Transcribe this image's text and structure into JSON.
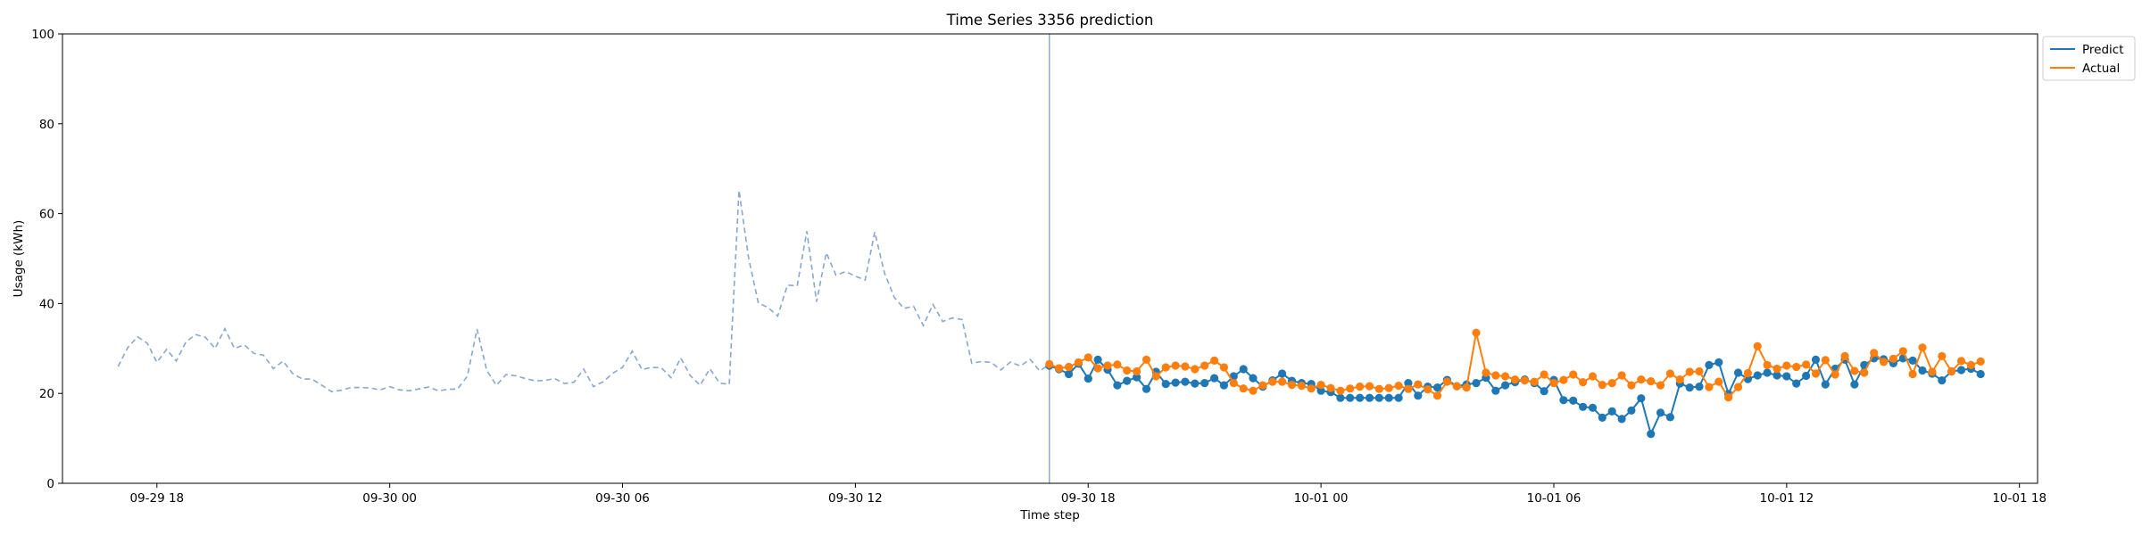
{
  "chart_data": {
    "type": "line",
    "title": "Time Series 3356 prediction",
    "xlabel": "Time step",
    "ylabel": "Usage (kWh)",
    "ylim": [
      0,
      100
    ],
    "yticks": [
      0,
      20,
      40,
      60,
      80,
      100
    ],
    "xlim": [
      "2024-09-29T15:34",
      "2024-10-01T18:28"
    ],
    "xticks": [
      {
        "t": "2024-09-29T18:00",
        "label": "09-29 18"
      },
      {
        "t": "2024-09-30T00:00",
        "label": "09-30 00"
      },
      {
        "t": "2024-09-30T06:00",
        "label": "09-30 06"
      },
      {
        "t": "2024-09-30T12:00",
        "label": "09-30 12"
      },
      {
        "t": "2024-09-30T18:00",
        "label": "09-30 18"
      },
      {
        "t": "2024-10-01T00:00",
        "label": "10-01 00"
      },
      {
        "t": "2024-10-01T06:00",
        "label": "10-01 06"
      },
      {
        "t": "2024-10-01T12:00",
        "label": "10-01 12"
      },
      {
        "t": "2024-10-01T18:00",
        "label": "10-01 18"
      }
    ],
    "vline_time": "2024-09-30T17:00",
    "start_time": "2024-09-29T17:00",
    "history": {
      "style": "dashed",
      "color": "#8aa6cc",
      "values": [
        26.0,
        30.2,
        32.6,
        31.2,
        26.9,
        29.8,
        27.2,
        31.5,
        33.1,
        32.5,
        30.0,
        34.4,
        30.0,
        30.8,
        28.9,
        28.5,
        25.5,
        27.2,
        24.4,
        23.2,
        23.2,
        21.8,
        20.4,
        20.7,
        21.3,
        21.3,
        21.2,
        20.8,
        21.5,
        20.8,
        20.6,
        21.0,
        21.4,
        20.6,
        20.9,
        21.0,
        23.8,
        34.3,
        25.1,
        21.8,
        24.2,
        23.9,
        23.3,
        22.8,
        22.9,
        23.3,
        22.2,
        22.5,
        25.4,
        21.5,
        22.6,
        24.5,
        25.8,
        29.4,
        25.3,
        25.8,
        25.7,
        23.5,
        27.9,
        23.9,
        21.8,
        25.5,
        22.3,
        22.0,
        65.2,
        50.1,
        40.1,
        39.1,
        37.2,
        44.1,
        43.9,
        56.1,
        40.4,
        51.3,
        46.3,
        47.1,
        46.1,
        45.2,
        55.9,
        46.8,
        41.4,
        38.9,
        39.4,
        35.1,
        39.8,
        36.0,
        36.8,
        36.4,
        26.7,
        27.1,
        26.9,
        25.2,
        27.0,
        26.1,
        27.6,
        25.0,
        26.4
      ]
    },
    "series": [
      {
        "name": "Predict",
        "color": "#1f77b4",
        "values": [
          26.2,
          25.4,
          24.3,
          26.6,
          23.3,
          27.5,
          25.3,
          21.8,
          22.8,
          23.6,
          21.0,
          24.8,
          22.1,
          22.4,
          22.6,
          22.2,
          22.3,
          23.4,
          21.8,
          23.8,
          25.4,
          23.4,
          21.5,
          22.9,
          24.4,
          22.8,
          22.3,
          22.1,
          20.6,
          20.3,
          19.0,
          19.0,
          19.0,
          19.0,
          19.0,
          19.0,
          19.0,
          22.3,
          19.5,
          21.5,
          21.3,
          23.0,
          21.6,
          22.0,
          22.3,
          23.5,
          20.6,
          21.8,
          22.5,
          23.1,
          22.3,
          20.5,
          23.0,
          18.5,
          18.4,
          17.0,
          16.8,
          14.6,
          16.0,
          14.3,
          16.2,
          18.9,
          11.0,
          15.7,
          14.7,
          22.2,
          21.3,
          21.5,
          26.3,
          26.9,
          19.9,
          24.6,
          23.2,
          24.0,
          24.6,
          24.0,
          23.8,
          22.2,
          23.9,
          27.5,
          22.0,
          25.5,
          27.5,
          22.0,
          26.3,
          27.8,
          27.6,
          26.7,
          27.8,
          27.3,
          25.1,
          24.4,
          22.9,
          24.9,
          25.2,
          25.5,
          24.3
        ]
      },
      {
        "name": "Actual",
        "color": "#ff7f0e",
        "values": [
          26.5,
          25.6,
          25.9,
          26.9,
          28.0,
          25.6,
          26.2,
          26.4,
          25.1,
          24.9,
          27.5,
          23.8,
          25.8,
          26.2,
          26.0,
          25.4,
          26.2,
          27.3,
          25.8,
          22.3,
          21.1,
          20.6,
          21.8,
          22.6,
          22.6,
          21.9,
          21.7,
          21.1,
          21.9,
          21.2,
          20.6,
          21.1,
          21.5,
          21.6,
          21.0,
          21.2,
          21.7,
          21.0,
          22.0,
          20.9,
          19.5,
          22.6,
          21.6,
          21.3,
          33.5,
          24.6,
          24.0,
          23.8,
          23.1,
          22.9,
          22.6,
          24.2,
          22.3,
          23.0,
          24.2,
          22.5,
          23.8,
          21.9,
          22.3,
          24.0,
          21.8,
          23.1,
          22.7,
          21.8,
          24.4,
          23.1,
          24.8,
          24.9,
          21.4,
          22.6,
          19.1,
          21.4,
          24.5,
          30.5,
          26.3,
          25.5,
          26.2,
          25.9,
          26.4,
          24.4,
          27.4,
          24.2,
          28.3,
          25.0,
          24.6,
          29.0,
          27.0,
          27.7,
          29.4,
          24.3,
          30.2,
          24.8,
          28.3,
          24.9,
          27.2,
          26.3,
          27.1
        ]
      }
    ],
    "legend": {
      "placement": "upper-right-outside",
      "entries": [
        "Predict",
        "Actual"
      ]
    },
    "grid": false,
    "vline_color": "#7f9bd1"
  }
}
